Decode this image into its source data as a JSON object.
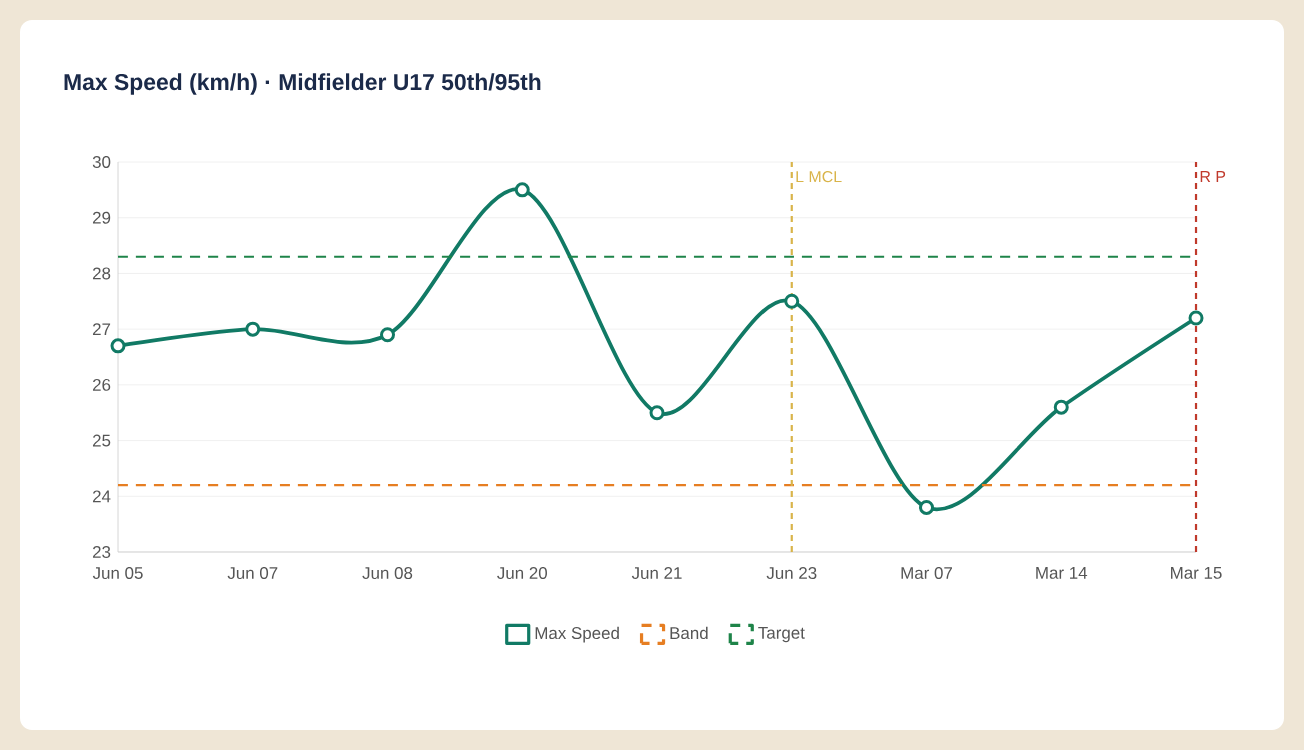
{
  "chart_data": {
    "type": "line",
    "title": "Max Speed (km/h) · Midfielder U17 50th/95th",
    "categories": [
      "Jun 05",
      "Jun 07",
      "Jun 08",
      "Jun 20",
      "Jun 21",
      "Jun 23",
      "Mar 07",
      "Mar 14",
      "Mar 15"
    ],
    "series": [
      {
        "name": "Max Speed",
        "color": "#117a65",
        "values": [
          26.7,
          27.0,
          26.9,
          29.5,
          25.5,
          27.5,
          23.8,
          25.6,
          27.2
        ],
        "marker": "circle",
        "line_style": "solid"
      },
      {
        "name": "Band",
        "color": "#e67e22",
        "values": [
          24.2,
          24.2,
          24.2,
          24.2,
          24.2,
          24.2,
          24.2,
          24.2,
          24.2
        ],
        "marker": "none",
        "line_style": "dashed"
      },
      {
        "name": "Target",
        "color": "#1e8449",
        "values": [
          28.3,
          28.3,
          28.3,
          28.3,
          28.3,
          28.3,
          28.3,
          28.3,
          28.3
        ],
        "marker": "none",
        "line_style": "dashed"
      }
    ],
    "ylim": [
      23,
      30
    ],
    "yticks": [
      23,
      24,
      25,
      26,
      27,
      28,
      29,
      30
    ],
    "ref_lines": [
      {
        "axis": "x",
        "value": "Jun 23",
        "label": "L MCL",
        "color": "#d9b44a",
        "line_style": "dashed"
      },
      {
        "axis": "x",
        "value": "Mar 15",
        "label": "R P",
        "color": "#c0392b",
        "line_style": "dashed"
      }
    ],
    "grid": "y",
    "legend": "bottom"
  }
}
